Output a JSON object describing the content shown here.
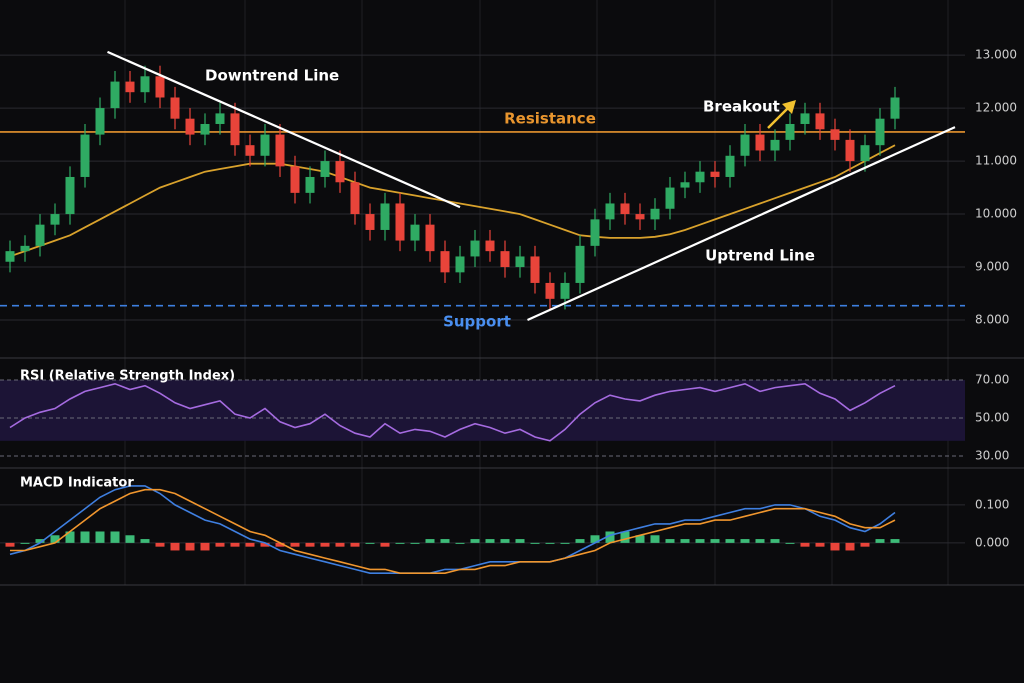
{
  "chart_data": [
    {
      "type": "candlestick",
      "xlim": [
        -0.667,
        63.667
      ],
      "ylim": [
        7.34,
        14.04
      ],
      "yticks": [
        {
          "value": 8,
          "label": "8.000"
        },
        {
          "value": 9,
          "label": "9.000"
        },
        {
          "value": 10,
          "label": "10.000"
        },
        {
          "value": 11,
          "label": "11.000"
        },
        {
          "value": 12,
          "label": "12.000"
        },
        {
          "value": 13,
          "label": "13.000"
        }
      ],
      "grid": true,
      "up_color": "#2faa63",
      "down_color": "#e8443a",
      "open": [
        9.1,
        9.3,
        9.4,
        9.8,
        10.0,
        10.7,
        11.5,
        12.0,
        12.5,
        12.3,
        12.6,
        12.2,
        11.8,
        11.5,
        11.7,
        11.9,
        11.3,
        11.1,
        11.5,
        10.9,
        10.4,
        10.7,
        11.0,
        10.6,
        10.0,
        9.7,
        10.2,
        9.5,
        9.8,
        9.3,
        8.9,
        9.2,
        9.5,
        9.3,
        9.0,
        9.2,
        8.7,
        8.4,
        8.7,
        9.4,
        9.9,
        10.2,
        10.0,
        9.9,
        10.1,
        10.5,
        10.6,
        10.8,
        10.7,
        11.1,
        11.5,
        11.2,
        11.4,
        11.7,
        11.9,
        11.6,
        11.4,
        11.0,
        11.3,
        11.8
      ],
      "high": [
        9.5,
        9.6,
        10.0,
        10.2,
        10.9,
        11.7,
        12.2,
        12.7,
        12.7,
        12.8,
        12.8,
        12.4,
        12.0,
        11.9,
        12.1,
        12.1,
        11.5,
        11.7,
        11.7,
        11.1,
        10.9,
        11.2,
        11.2,
        10.8,
        10.2,
        10.4,
        10.4,
        10.0,
        10.0,
        9.5,
        9.4,
        9.7,
        9.7,
        9.5,
        9.4,
        9.4,
        8.9,
        8.9,
        9.6,
        10.1,
        10.4,
        10.4,
        10.2,
        10.3,
        10.7,
        10.8,
        11.0,
        11.0,
        11.3,
        11.7,
        11.7,
        11.6,
        11.9,
        12.1,
        12.1,
        11.8,
        11.6,
        11.5,
        12.0,
        12.4
      ],
      "low": [
        8.9,
        9.1,
        9.2,
        9.6,
        9.8,
        10.5,
        11.3,
        11.8,
        12.1,
        12.1,
        12.0,
        11.6,
        11.3,
        11.3,
        11.5,
        11.1,
        10.9,
        10.9,
        10.7,
        10.2,
        10.2,
        10.5,
        10.4,
        9.8,
        9.5,
        9.5,
        9.3,
        9.3,
        9.1,
        8.7,
        8.7,
        9.0,
        9.1,
        8.8,
        8.8,
        8.5,
        8.2,
        8.2,
        8.5,
        9.2,
        9.7,
        9.8,
        9.7,
        9.7,
        9.9,
        10.3,
        10.4,
        10.5,
        10.5,
        10.9,
        11.0,
        11.0,
        11.2,
        11.5,
        11.4,
        11.2,
        10.8,
        10.8,
        11.1,
        11.6
      ],
      "close": [
        9.3,
        9.4,
        9.8,
        10.0,
        10.7,
        11.5,
        12.0,
        12.5,
        12.3,
        12.6,
        12.2,
        11.8,
        11.5,
        11.7,
        11.9,
        11.3,
        11.1,
        11.5,
        10.9,
        10.4,
        10.7,
        11.0,
        10.6,
        10.0,
        9.7,
        10.2,
        9.5,
        9.8,
        9.3,
        8.9,
        9.2,
        9.5,
        9.3,
        9.0,
        9.2,
        8.7,
        8.4,
        8.7,
        9.4,
        9.9,
        10.2,
        10.0,
        9.9,
        10.1,
        10.5,
        10.6,
        10.8,
        10.7,
        11.1,
        11.5,
        11.2,
        11.4,
        11.7,
        11.9,
        11.6,
        11.4,
        11.0,
        11.3,
        11.8,
        12.2
      ],
      "moving_average": {
        "color": "#d9a22c",
        "values": [
          9.2,
          9.3,
          9.4,
          9.5,
          9.6,
          9.75,
          9.9,
          10.05,
          10.2,
          10.35,
          10.5,
          10.6,
          10.7,
          10.8,
          10.85,
          10.9,
          10.95,
          10.95,
          10.95,
          10.9,
          10.85,
          10.8,
          10.7,
          10.6,
          10.5,
          10.45,
          10.4,
          10.35,
          10.3,
          10.25,
          10.2,
          10.15,
          10.1,
          10.05,
          10.0,
          9.9,
          9.8,
          9.7,
          9.6,
          9.57,
          9.55,
          9.55,
          9.55,
          9.57,
          9.62,
          9.7,
          9.8,
          9.9,
          10.0,
          10.1,
          10.2,
          10.3,
          10.4,
          10.5,
          10.6,
          10.7,
          10.85,
          11.0,
          11.15,
          11.3
        ]
      },
      "levels": [
        {
          "name": "Resistance",
          "value": 11.55,
          "color": "#e8952e",
          "dashed": false
        },
        {
          "name": "Support",
          "value": 8.27,
          "color": "#3d7fe0",
          "dashed": true
        }
      ],
      "trendlines": [
        {
          "name": "Downtrend Line",
          "x": [
            6.5,
            30
          ],
          "y": [
            13.06,
            10.13
          ],
          "color": "#ffffff"
        },
        {
          "name": "Uptrend Line",
          "x": [
            34.5,
            63
          ],
          "y": [
            8.0,
            11.64
          ],
          "color": "#ffffff"
        }
      ],
      "annotation": "Breakout"
    },
    {
      "type": "line",
      "title": "RSI (Relative Strength Index)",
      "ylim": [
        23.7,
        79.5
      ],
      "yticks": [
        {
          "value": 30,
          "label": "30.00"
        },
        {
          "value": 50,
          "label": "50.00"
        },
        {
          "value": 70,
          "label": "70.00"
        }
      ],
      "band": [
        38,
        70
      ],
      "color": "#a56be0",
      "values": [
        45,
        50,
        53,
        55,
        60,
        64,
        66,
        68,
        65,
        67,
        63,
        58,
        55,
        57,
        59,
        52,
        50,
        55,
        48,
        45,
        47,
        52,
        46,
        42,
        40,
        47,
        42,
        44,
        43,
        40,
        44,
        47,
        45,
        42,
        44,
        40,
        38,
        44,
        52,
        58,
        62,
        60,
        59,
        62,
        64,
        65,
        66,
        64,
        66,
        68,
        64,
        66,
        67,
        68,
        63,
        60,
        54,
        58,
        63,
        67
      ]
    },
    {
      "type": "macd",
      "title": "MACD Indicator",
      "ylim": [
        -0.111,
        0.192
      ],
      "yticks": [
        {
          "value": 0,
          "label": "0.000"
        },
        {
          "value": 0.1,
          "label": "0.100"
        }
      ],
      "series": [
        {
          "color": "#3f7fe0",
          "values": [
            -0.03,
            -0.02,
            0.0,
            0.03,
            0.06,
            0.09,
            0.12,
            0.14,
            0.15,
            0.15,
            0.13,
            0.1,
            0.08,
            0.06,
            0.05,
            0.03,
            0.01,
            0.0,
            -0.02,
            -0.03,
            -0.04,
            -0.05,
            -0.06,
            -0.07,
            -0.08,
            -0.08,
            -0.08,
            -0.08,
            -0.08,
            -0.07,
            -0.07,
            -0.06,
            -0.05,
            -0.05,
            -0.05,
            -0.05,
            -0.05,
            -0.04,
            -0.02,
            0.0,
            0.02,
            0.03,
            0.04,
            0.05,
            0.05,
            0.06,
            0.06,
            0.07,
            0.08,
            0.09,
            0.09,
            0.1,
            0.1,
            0.09,
            0.07,
            0.06,
            0.04,
            0.03,
            0.05,
            0.08
          ]
        },
        {
          "color": "#f0962e",
          "values": [
            -0.02,
            -0.02,
            -0.01,
            0.0,
            0.03,
            0.06,
            0.09,
            0.11,
            0.13,
            0.14,
            0.14,
            0.13,
            0.11,
            0.09,
            0.07,
            0.05,
            0.03,
            0.02,
            0.0,
            -0.02,
            -0.03,
            -0.04,
            -0.05,
            -0.06,
            -0.07,
            -0.07,
            -0.08,
            -0.08,
            -0.08,
            -0.08,
            -0.07,
            -0.07,
            -0.06,
            -0.06,
            -0.05,
            -0.05,
            -0.05,
            -0.04,
            -0.03,
            -0.02,
            0.0,
            0.01,
            0.02,
            0.03,
            0.04,
            0.05,
            0.05,
            0.06,
            0.06,
            0.07,
            0.08,
            0.09,
            0.09,
            0.09,
            0.08,
            0.07,
            0.05,
            0.04,
            0.04,
            0.06
          ]
        }
      ],
      "histogram": {
        "up_color": "#3dbb78",
        "down_color": "#e8443a",
        "values": [
          -0.01,
          0.0,
          0.01,
          0.02,
          0.03,
          0.03,
          0.03,
          0.03,
          0.02,
          0.01,
          -0.01,
          -0.02,
          -0.02,
          -0.02,
          -0.01,
          -0.01,
          -0.01,
          -0.01,
          -0.01,
          -0.01,
          -0.01,
          -0.01,
          -0.01,
          -0.01,
          0.0,
          -0.01,
          0.0,
          0.0,
          0.01,
          0.01,
          0.0,
          0.01,
          0.01,
          0.01,
          0.01,
          0.0,
          0.0,
          0.0,
          0.01,
          0.02,
          0.03,
          0.03,
          0.02,
          0.02,
          0.01,
          0.01,
          0.01,
          0.01,
          0.01,
          0.01,
          0.01,
          0.01,
          0.0,
          -0.01,
          -0.01,
          -0.02,
          -0.02,
          -0.01,
          0.01,
          0.01
        ]
      }
    }
  ]
}
